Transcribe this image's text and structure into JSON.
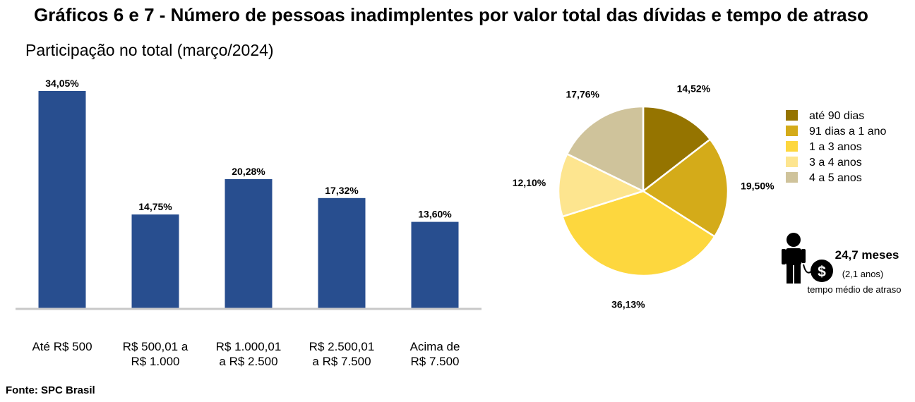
{
  "title": "Gráficos 6 e 7 - Número de pessoas inadimplentes por valor total das dívidas e tempo de atraso",
  "subtitle": "Participação no total (março/2024)",
  "source": "Fonte: SPC Brasil",
  "colors": {
    "bar": "#284e8f",
    "axis": "#c8c8c8",
    "pie": [
      "#957400",
      "#d4ab19",
      "#fdd73e",
      "#fde58f",
      "#cfc39b"
    ]
  },
  "chart_data": [
    {
      "type": "bar",
      "categories": [
        [
          "Até R$ 500"
        ],
        [
          "R$ 500,01 a",
          "R$ 1.000"
        ],
        [
          "R$ 1.000,01",
          "a R$ 2.500"
        ],
        [
          "R$ 2.500,01",
          "a R$ 7.500"
        ],
        [
          "Acima de",
          "R$ 7.500"
        ]
      ],
      "values": [
        34.05,
        14.75,
        20.28,
        17.32,
        13.6
      ],
      "labels": [
        "34,05%",
        "14,75%",
        "20,28%",
        "17,32%",
        "13,60%"
      ],
      "ylim": [
        0,
        34.05
      ],
      "grid": false
    },
    {
      "type": "pie",
      "categories": [
        "até 90 dias",
        "91 dias a 1 ano",
        "1 a 3 anos",
        "3 a 4 anos",
        "4 a 5 anos"
      ],
      "values": [
        14.52,
        19.5,
        36.13,
        12.1,
        17.76
      ],
      "labels": [
        "14,52%",
        "19,50%",
        "36,13%",
        "12,10%",
        "17,76%"
      ],
      "legend_position": "right"
    }
  ],
  "average": {
    "value": "24,7 meses",
    "years": "(2,1 anos)",
    "caption": "tempo médio de atraso",
    "icon": "person-with-money-icon"
  }
}
